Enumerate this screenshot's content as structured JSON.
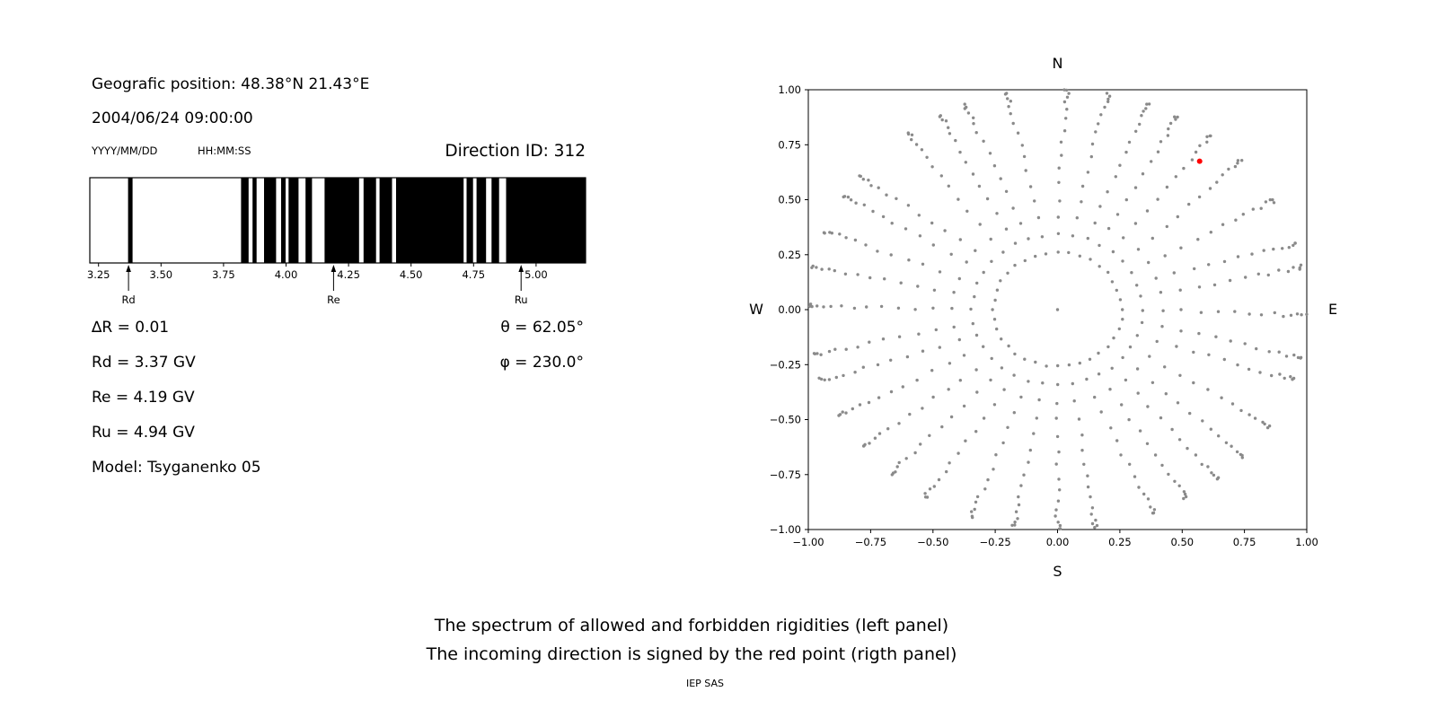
{
  "left_panel": {
    "geographic_position": "Geografic position: 48.38°N 21.43°E",
    "datetime": "2004/06/24 09:00:00",
    "date_format_label": "YYYY/MM/DD",
    "time_format_label": "HH:MM:SS",
    "direction_id": "Direction ID: 312",
    "delta_r": "∆R = 0.01",
    "theta": "θ = 62.05°",
    "rd": "Rd = 3.37 GV",
    "phi": "φ = 230.0°",
    "re": "Re = 4.19 GV",
    "ru": "Ru = 4.94 GV",
    "model": "Model: Tsyganenko 05"
  },
  "caption": {
    "line1": "The spectrum of allowed and forbidden rigidities (left panel)",
    "line2": "The incoming direction is signed by the red point (rigth panel)",
    "credit": "IEP SAS"
  },
  "chart_data": [
    {
      "type": "bar",
      "name": "rigidity-spectrum",
      "description": "Barcode-style spectrum: black = allowed rigidity bands, white = forbidden",
      "x_unit": "GV",
      "xlim": [
        3.215,
        5.198
      ],
      "xticks": [
        3.25,
        3.5,
        3.75,
        4.0,
        4.25,
        4.5,
        4.75,
        5.0
      ],
      "bar_color": "#000000",
      "allowed_bands_GV": [
        [
          3.368,
          3.386
        ],
        [
          3.82,
          3.85
        ],
        [
          3.866,
          3.882
        ],
        [
          3.912,
          3.96
        ],
        [
          3.98,
          3.998
        ],
        [
          4.01,
          4.05
        ],
        [
          4.078,
          4.104
        ],
        [
          4.154,
          4.292
        ],
        [
          4.31,
          4.36
        ],
        [
          4.374,
          4.424
        ],
        [
          4.44,
          4.71
        ],
        [
          4.722,
          4.748
        ],
        [
          4.762,
          4.8
        ],
        [
          4.822,
          4.852
        ],
        [
          4.88,
          5.198
        ]
      ],
      "markers": [
        {
          "label": "Rd",
          "value_GV": 3.37
        },
        {
          "label": "Re",
          "value_GV": 4.19
        },
        {
          "label": "Ru",
          "value_GV": 4.94
        }
      ]
    },
    {
      "type": "scatter",
      "name": "incoming-direction-map",
      "description": "Grid of incoming directions (gray dots, radial spokes by azimuth, radius = sin(zenith)); red point marks the incoming direction",
      "xlim": [
        -1.0,
        1.0
      ],
      "ylim": [
        -1.0,
        1.0
      ],
      "xticks": [
        -1.0,
        -0.75,
        -0.5,
        -0.25,
        0.0,
        0.25,
        0.5,
        0.75,
        1.0
      ],
      "yticks": [
        -1.0,
        -0.75,
        -0.5,
        -0.25,
        0.0,
        0.25,
        0.5,
        0.75,
        1.0
      ],
      "compass_labels": {
        "top": "N",
        "bottom": "S",
        "left": "W",
        "right": "E"
      },
      "dot_color": "#8a8a8a",
      "grid": {
        "azimuth_start_deg": 0,
        "azimuth_step_deg": 10,
        "azimuth_count": 36,
        "zenith_start_deg": 15,
        "zenith_step_deg": 5,
        "zenith_end_deg": 90,
        "radius_mapping": "sin(zenith)"
      },
      "center_point": [
        0.0,
        0.0
      ],
      "red_point": {
        "x": 0.57,
        "y": 0.675,
        "color": "#ff0000"
      }
    }
  ]
}
